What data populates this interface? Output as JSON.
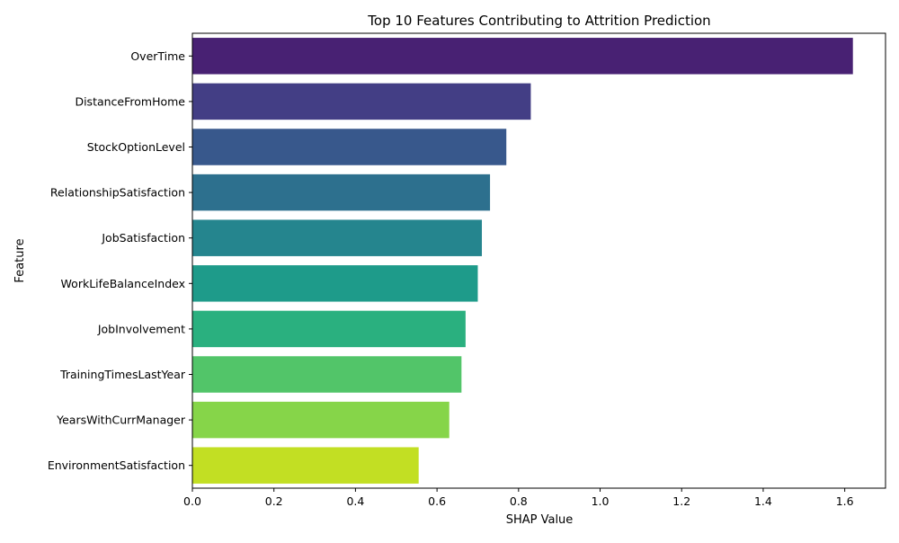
{
  "chart_data": {
    "type": "bar",
    "orientation": "horizontal",
    "title": "Top 10 Features Contributing to Attrition Prediction",
    "xlabel": "SHAP Value",
    "ylabel": "Feature",
    "categories": [
      "OverTime",
      "DistanceFromHome",
      "StockOptionLevel",
      "RelationshipSatisfaction",
      "JobSatisfaction",
      "WorkLifeBalanceIndex",
      "JobInvolvement",
      "TrainingTimesLastYear",
      "YearsWithCurrManager",
      "EnvironmentSatisfaction"
    ],
    "values": [
      1.62,
      0.83,
      0.77,
      0.73,
      0.71,
      0.7,
      0.67,
      0.66,
      0.63,
      0.555
    ],
    "colors": [
      "#482173",
      "#433e85",
      "#38588c",
      "#2d708e",
      "#25858e",
      "#1e9b8a",
      "#2ab07f",
      "#52c569",
      "#86d549",
      "#c2df23"
    ],
    "xlim": [
      0,
      1.7
    ],
    "xticks": [
      "0.0",
      "0.2",
      "0.4",
      "0.6",
      "0.8",
      "1.0",
      "1.2",
      "1.4",
      "1.6"
    ],
    "grid": false,
    "legend": "none"
  }
}
